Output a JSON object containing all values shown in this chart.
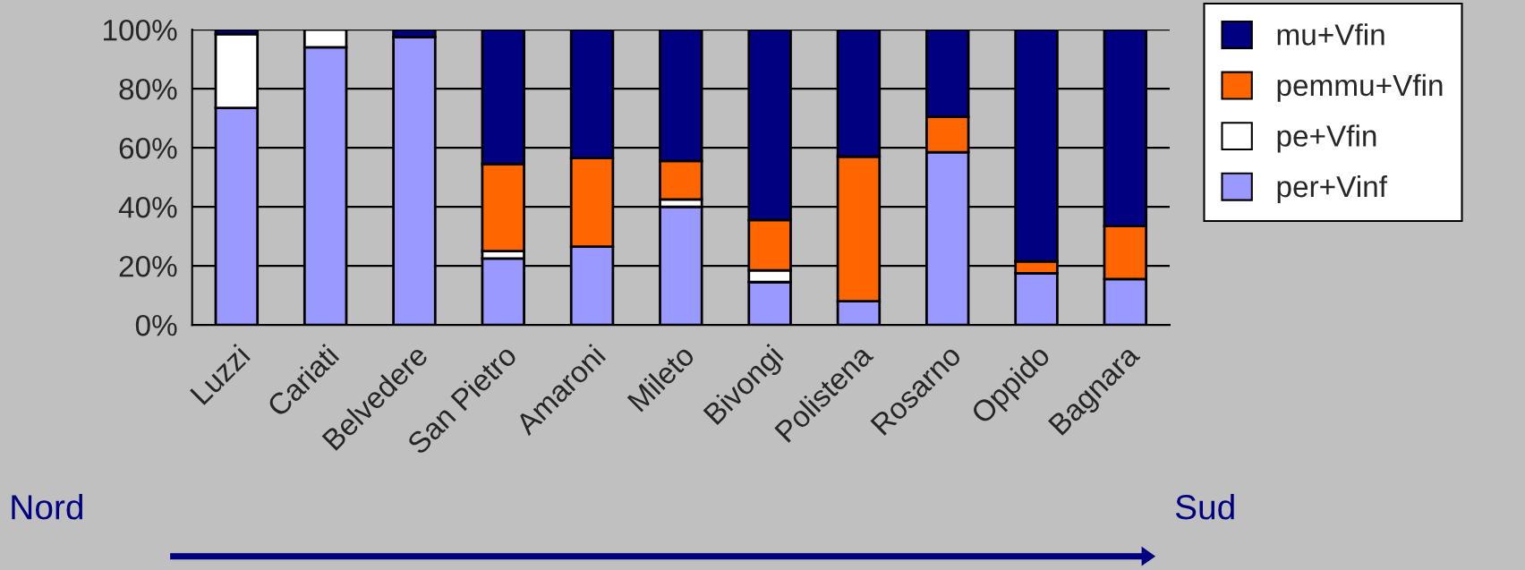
{
  "chart_data": {
    "type": "bar",
    "stacked": true,
    "categories": [
      "Luzzi",
      "Cariati",
      "Belvedere",
      "San Pietro",
      "Amaroni",
      "Mileto",
      "Bivongi",
      "Polistena",
      "Rosarno",
      "Oppido",
      "Bagnara"
    ],
    "series": [
      {
        "name": "per+Vinf",
        "color": "#9999ff",
        "values": [
          73.5,
          94,
          97.5,
          22.5,
          26.5,
          40,
          14.5,
          8,
          58.5,
          17.5,
          15.5
        ]
      },
      {
        "name": "pe+Vfin",
        "color": "#ffffff",
        "values": [
          25,
          6,
          0,
          2.5,
          0,
          2.5,
          4,
          0,
          0,
          0,
          0
        ]
      },
      {
        "name": "pemmu+Vfin",
        "color": "#ff6600",
        "values": [
          0,
          0,
          0,
          29.5,
          30,
          13,
          17,
          49,
          12,
          4,
          18
        ]
      },
      {
        "name": "mu+Vfin",
        "color": "#000080",
        "values": [
          1.5,
          0,
          2.5,
          45.5,
          43.5,
          44.5,
          64.5,
          43,
          29.5,
          78.5,
          66.5
        ]
      }
    ],
    "ylim": [
      0,
      100
    ],
    "yticks": [
      {
        "value": 0,
        "label": "0%"
      },
      {
        "value": 20,
        "label": "20%"
      },
      {
        "value": 40,
        "label": "40%"
      },
      {
        "value": 60,
        "label": "60%"
      },
      {
        "value": 80,
        "label": "80%"
      },
      {
        "value": 100,
        "label": "100%"
      }
    ],
    "grid": "y",
    "legend": "right",
    "annotations": [
      "Nord",
      "Sud"
    ]
  }
}
